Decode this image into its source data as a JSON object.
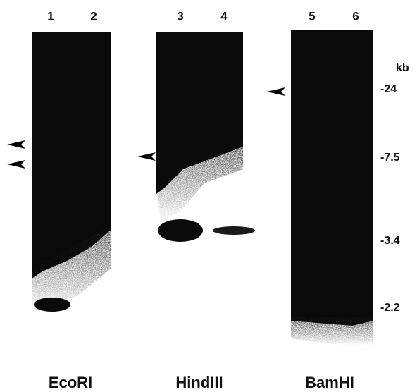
{
  "lanes": [
    "1",
    "2",
    "3",
    "4",
    "5",
    "6"
  ],
  "markers": {
    "unit": "kb",
    "labels": [
      "-24",
      "-7.5",
      "-3.4",
      "-2.2"
    ]
  },
  "enzymes": [
    "EcoRI",
    "HindIII",
    "BamHI"
  ]
}
